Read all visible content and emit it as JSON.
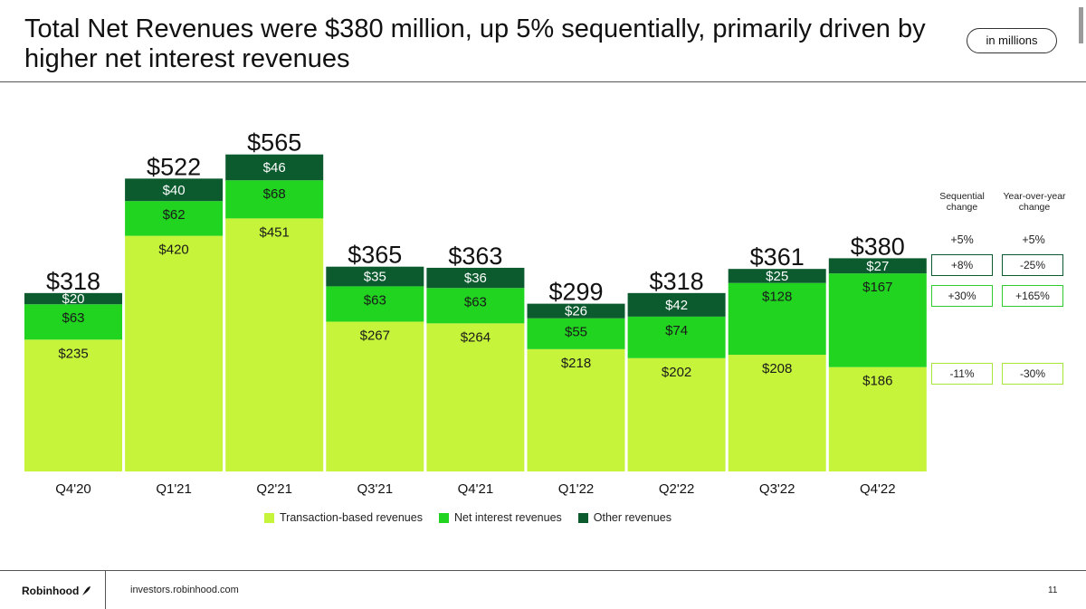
{
  "header": {
    "title": "Total Net Revenues were $380 million, up 5% sequentially, primarily driven by higher net interest revenues",
    "units": "in millions"
  },
  "colors": {
    "transaction": "#c6f43b",
    "net_interest": "#20d420",
    "other": "#0b5b2e",
    "box_border": "#2ecc2e"
  },
  "chart_data": {
    "type": "bar",
    "stacked": true,
    "categories": [
      "Q4'20",
      "Q1'21",
      "Q2'21",
      "Q3'21",
      "Q4'21",
      "Q1'22",
      "Q2'22",
      "Q3'22",
      "Q4'22"
    ],
    "series": [
      {
        "name": "Transaction-based revenues",
        "values": [
          235,
          420,
          451,
          267,
          264,
          218,
          202,
          208,
          186
        ]
      },
      {
        "name": "Net interest revenues",
        "values": [
          63,
          62,
          68,
          63,
          63,
          55,
          74,
          128,
          167
        ]
      },
      {
        "name": "Other revenues",
        "values": [
          20,
          40,
          46,
          35,
          36,
          26,
          42,
          25,
          27
        ]
      }
    ],
    "totals": [
      318,
      522,
      565,
      365,
      363,
      299,
      318,
      361,
      380
    ],
    "title": "Total Net Revenues",
    "xlabel": "",
    "ylabel": "",
    "ylim": [
      0,
      600
    ],
    "grid": false,
    "legend": "bottom"
  },
  "changes": {
    "seq_header": "Sequential change",
    "yoy_header": "Year-over-year change",
    "total": {
      "seq": "+5%",
      "yoy": "+5%"
    },
    "other": {
      "seq": "+8%",
      "yoy": "-25%"
    },
    "net_interest": {
      "seq": "+30%",
      "yoy": "+165%"
    },
    "transaction": {
      "seq": "-11%",
      "yoy": "-30%"
    }
  },
  "footer": {
    "brand": "Robinhood",
    "site": "investors.robinhood.com",
    "page": "11"
  }
}
